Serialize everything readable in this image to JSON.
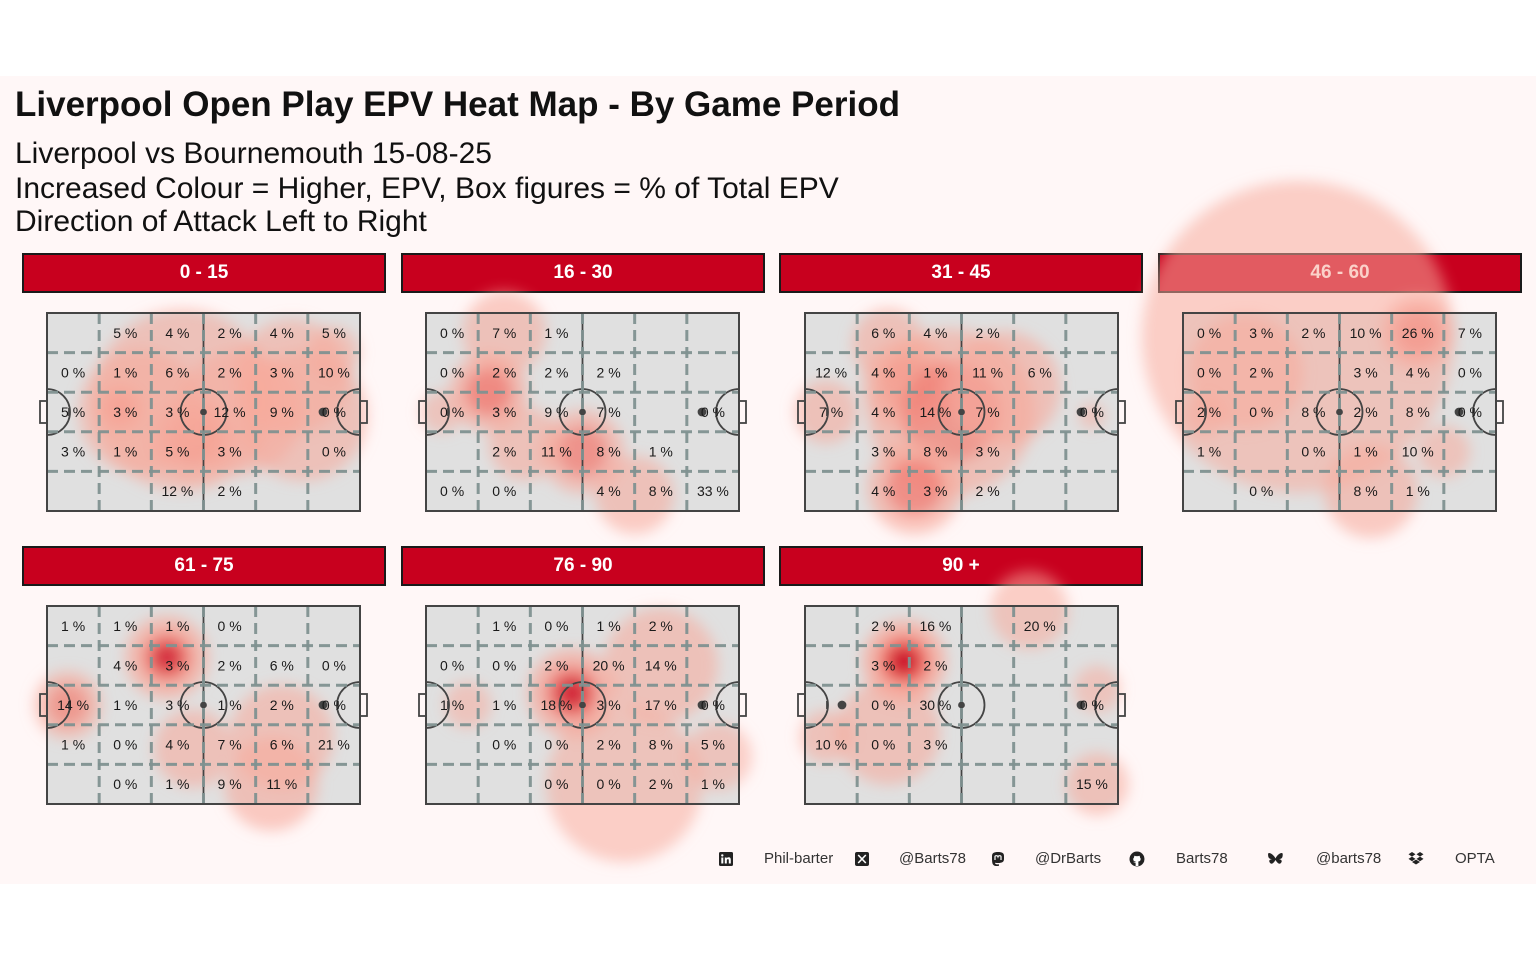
{
  "title": "Liverpool Open Play EPV Heat Map - By Game Period",
  "subtitle_lines": [
    "Liverpool vs Bournemouth 15-08-25",
    "Increased Colour = Higher, EPV, Box figures = % of Total EPV",
    "Direction of Attack Left to Right"
  ],
  "colors": {
    "strip": "#c8001e",
    "pitch": "#e0e0e0",
    "grid_dash": "#7f9190",
    "heat_low": "#f7a99b",
    "heat_high": "#c8001e",
    "background": "#fff7f7"
  },
  "chart_data": {
    "type": "heatmap",
    "grid": {
      "columns": 6,
      "rows": 5
    },
    "panels": [
      {
        "period": "0 - 15",
        "labels": [
          [
            null,
            "5 %",
            "4 %",
            "2 %",
            "4 %",
            "5 %"
          ],
          [
            "0 %",
            "1 %",
            "6 %",
            "2 %",
            "3 %",
            "10 %"
          ],
          [
            "5 %",
            "3 %",
            "3 %",
            "12 %",
            "9 %",
            "0 %"
          ],
          [
            "3 %",
            "1 %",
            "5 %",
            "3 %",
            null,
            "0 %"
          ],
          [
            null,
            null,
            "12 %",
            "2 %",
            null,
            null
          ]
        ],
        "hotspots": [
          [
            0.3,
            1,
            3,
            3
          ],
          [
            0.55,
            0.95,
            1.4,
            2.4
          ],
          [
            0.45,
            1.6,
            2.8,
            3.2
          ],
          [
            0.3,
            2.4,
            1.8,
            2.5
          ],
          [
            0.35,
            2.4,
            3.7,
            2.5
          ],
          [
            0.35,
            3.5,
            2.6,
            2.2
          ],
          [
            0.35,
            2.5,
            4.9,
            2.6
          ],
          [
            0.3,
            2.2,
            4.7,
            1.6
          ],
          [
            0.25,
            1,
            5.5,
            1
          ]
        ]
      },
      {
        "period": "16 - 30",
        "labels": [
          [
            "0 %",
            "7 %",
            "1 %",
            null,
            null,
            null
          ],
          [
            "0 %",
            "2 %",
            "2 %",
            "2 %",
            null,
            null
          ],
          [
            "0 %",
            "3 %",
            "9 %",
            "7 %",
            null,
            "0 %"
          ],
          [
            null,
            "2 %",
            "11 %",
            "8 %",
            "1 %",
            null
          ],
          [
            "0 %",
            "0 %",
            null,
            "4 %",
            "8 %",
            "33 %"
          ]
        ],
        "hotspots": [
          [
            0.3,
            1.6,
            1.5,
            0.5
          ],
          [
            0.6,
            1.5,
            1.2,
            2
          ],
          [
            0.5,
            1.6,
            3,
            3.5
          ],
          [
            0.3,
            1.5,
            4,
            4.6
          ],
          [
            0.35,
            1.4,
            1.9,
            3.3
          ],
          [
            0.2,
            0.8,
            0.3,
            2.5
          ]
        ]
      },
      {
        "period": "31 - 45",
        "labels": [
          [
            null,
            "6 %",
            "4 %",
            "2 %",
            null,
            null
          ],
          [
            "12 %",
            "4 %",
            "1 %",
            "11 %",
            "6 %",
            null
          ],
          [
            "7 %",
            "4 %",
            "14 %",
            "7 %",
            null,
            "0 %"
          ],
          [
            null,
            "3 %",
            "8 %",
            "3 %",
            null,
            null
          ],
          [
            null,
            "4 %",
            "3 %",
            "2 %",
            null,
            null
          ]
        ],
        "hotspots": [
          [
            0.35,
            1.4,
            1.6,
            0.8
          ],
          [
            0.45,
            1.8,
            2,
            1.8
          ],
          [
            0.35,
            1.2,
            0.4,
            2.5
          ],
          [
            0.45,
            3.2,
            2.8,
            2.5
          ],
          [
            0.4,
            2.2,
            3.8,
            1.9
          ],
          [
            0.55,
            1.8,
            2.1,
            4.4
          ],
          [
            0.2,
            0.5,
            5.5,
            2.6
          ]
        ]
      },
      {
        "period": "46 - 60",
        "labels": [
          [
            "0 %",
            "3 %",
            "2 %",
            "10 %",
            "26 %",
            "7 %"
          ],
          [
            "0 %",
            "2 %",
            null,
            "3 %",
            "4 %",
            "0 %"
          ],
          [
            "2 %",
            "0 %",
            "8 %",
            "2 %",
            "8 %",
            "0 %"
          ],
          [
            "1 %",
            null,
            "0 %",
            "1 %",
            "10 %",
            null
          ],
          [
            null,
            "0 %",
            null,
            "8 %",
            "1 %",
            null
          ]
        ],
        "hotspots": [
          [
            0.5,
            1.4,
            4.5,
            0.5
          ],
          [
            0.25,
            6,
            2.2,
            0.6
          ],
          [
            0.35,
            2.2,
            1.2,
            1.5
          ],
          [
            0.2,
            0.8,
            0.4,
            2.6
          ],
          [
            0.35,
            1.8,
            3.6,
            4.5
          ],
          [
            0.25,
            1,
            5,
            3.5
          ]
        ]
      },
      {
        "period": "61 - 75",
        "labels": [
          [
            "1 %",
            "1 %",
            "1 %",
            "0 %",
            null,
            null
          ],
          [
            null,
            "4 %",
            "3 %",
            "2 %",
            "6 %",
            "0 %"
          ],
          [
            "14 %",
            "1 %",
            "3 %",
            "1 %",
            "2 %",
            "0 %"
          ],
          [
            "1 %",
            "0 %",
            "4 %",
            "7 %",
            "6 %",
            "21 %"
          ],
          [
            null,
            "0 %",
            "1 %",
            "9 %",
            "11 %",
            null
          ]
        ],
        "hotspots": [
          [
            0.65,
            1.6,
            2.3,
            1.3
          ],
          [
            0.45,
            1.3,
            0.4,
            2.5
          ],
          [
            0.35,
            1.5,
            2.8,
            3.6
          ],
          [
            0.4,
            1.8,
            4.3,
            4.5
          ],
          [
            0.3,
            2,
            4.5,
            3.3
          ]
        ]
      },
      {
        "period": "76 - 90",
        "labels": [
          [
            null,
            "1 %",
            "0 %",
            "1 %",
            "2 %",
            null
          ],
          [
            "0 %",
            "0 %",
            "2 %",
            "20 %",
            "14 %",
            null
          ],
          [
            "1 %",
            "1 %",
            "18 %",
            "3 %",
            "17 %",
            "0 %"
          ],
          [
            null,
            "0 %",
            "0 %",
            "2 %",
            "8 %",
            "5 %"
          ],
          [
            null,
            null,
            "0 %",
            "0 %",
            "2 %",
            "1 %"
          ]
        ],
        "hotspots": [
          [
            0.7,
            1.7,
            2.8,
            2.2
          ],
          [
            0.3,
            2.2,
            4.5,
            1.5
          ],
          [
            0.25,
            3,
            3.8,
            4.5
          ],
          [
            0.2,
            1.3,
            5.6,
            3.8
          ],
          [
            0.2,
            0.9,
            0.8,
            2.5
          ]
        ]
      },
      {
        "period": "90 +",
        "labels": [
          [
            null,
            "2 %",
            "16 %",
            null,
            "20 %",
            null
          ],
          [
            null,
            "3 %",
            "2 %",
            null,
            null,
            null
          ],
          [
            null,
            "0 %",
            "30 %",
            null,
            null,
            "0 %"
          ],
          [
            "10 %",
            "0 %",
            "3 %",
            null,
            null,
            null
          ],
          [
            null,
            null,
            null,
            null,
            null,
            "15 %"
          ]
        ],
        "hotspots": [
          [
            0.9,
            1.6,
            1.9,
            1.4
          ],
          [
            0.35,
            2,
            1.6,
            3.2
          ],
          [
            0.3,
            1,
            0.4,
            3.3
          ],
          [
            0.35,
            1.2,
            5.6,
            4.5
          ],
          [
            0.25,
            1.5,
            4.3,
            0.1
          ],
          [
            0.2,
            0.9,
            5.6,
            2.1
          ]
        ]
      }
    ]
  },
  "caption": {
    "linkedin_icon": "linkedin-icon",
    "linkedin": "Phil-barter",
    "x_icon": "x-twitter-icon",
    "x": "@Barts78",
    "mastodon_icon": "mastodon-icon",
    "mastodon": "@DrBarts",
    "github_icon": "github-icon",
    "github": "Barts78",
    "bluesky_icon": "bluesky-icon",
    "bluesky": "@barts78",
    "dropbox_icon": "dropbox-icon",
    "source": "OPTA"
  }
}
